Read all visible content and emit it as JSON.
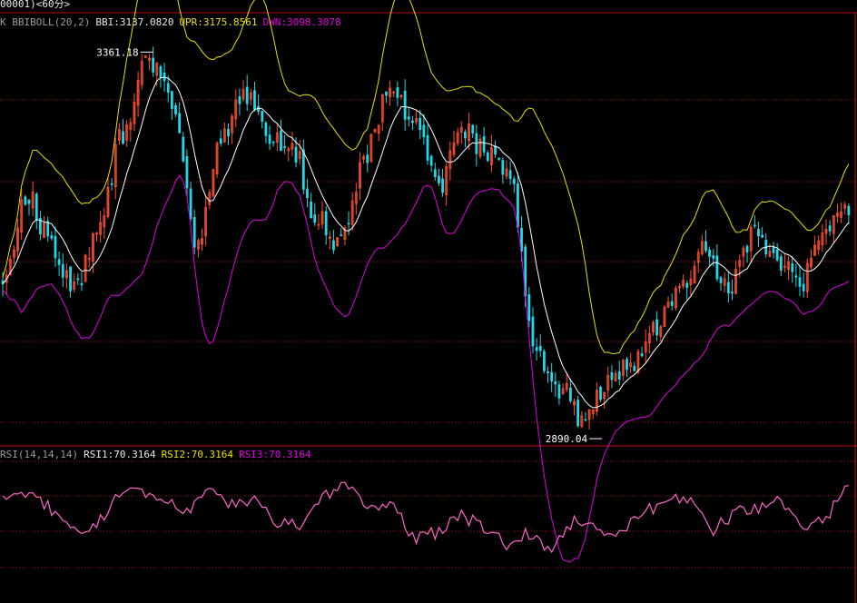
{
  "title_bar": "00001)<60分>",
  "main_panel": {
    "indicator_name": "K  BBIBOLL(20,2)",
    "bbi_label": "BBI:3137.0820",
    "upr_label": "UPR:3175.8561",
    "dwn_label": "DWN:3098.3078",
    "high_label": "3361.18",
    "low_label": "2890.04"
  },
  "rsi_panel": {
    "indicator_name": "RSI(14,14,14)",
    "rsi1_label": "RSI1:70.3164",
    "rsi2_label": "RSI2:70.3164",
    "rsi3_label": "RSI3:70.3164"
  },
  "colors": {
    "up_candle": "#ff5030",
    "down_candle": "#20d8e8",
    "bbi": "#ffffff",
    "upper_band": "#e8e000",
    "lower_band": "#e000e0",
    "rsi": "#ff66cc",
    "grid": "#a01010",
    "panel_border": "#c01010"
  },
  "chart_data": [
    {
      "type": "candlestick",
      "x_count": 226,
      "ylim": [
        2890.04,
        3361.18
      ],
      "max_price": 3361.18,
      "min_price": 2890.04,
      "series": [
        {
          "name": "BBI",
          "last": 3137.082
        },
        {
          "name": "UPR",
          "last": 3175.8561
        },
        {
          "name": "DWN",
          "last": 3098.3078
        }
      ],
      "close_trend": [
        3080,
        3180,
        3120,
        3060,
        3150,
        3260,
        3355,
        3300,
        3120,
        3250,
        3310,
        3260,
        3240,
        3150,
        3120,
        3230,
        3320,
        3280,
        3190,
        3260,
        3240,
        3200,
        2990,
        2940,
        2900,
        2940,
        2970,
        3010,
        3070,
        3110,
        3060,
        3130,
        3100,
        3070,
        3140,
        3165
      ]
    },
    {
      "type": "line",
      "name": "RSI",
      "ylim": [
        0,
        100
      ],
      "values": [
        62,
        64,
        56,
        40,
        42,
        60,
        66,
        60,
        52,
        64,
        56,
        58,
        46,
        44,
        60,
        68,
        52,
        58,
        36,
        40,
        50,
        44,
        32,
        40,
        30,
        46,
        42,
        38,
        52,
        58,
        60,
        40,
        52,
        55,
        60,
        42,
        48,
        70
      ]
    }
  ]
}
